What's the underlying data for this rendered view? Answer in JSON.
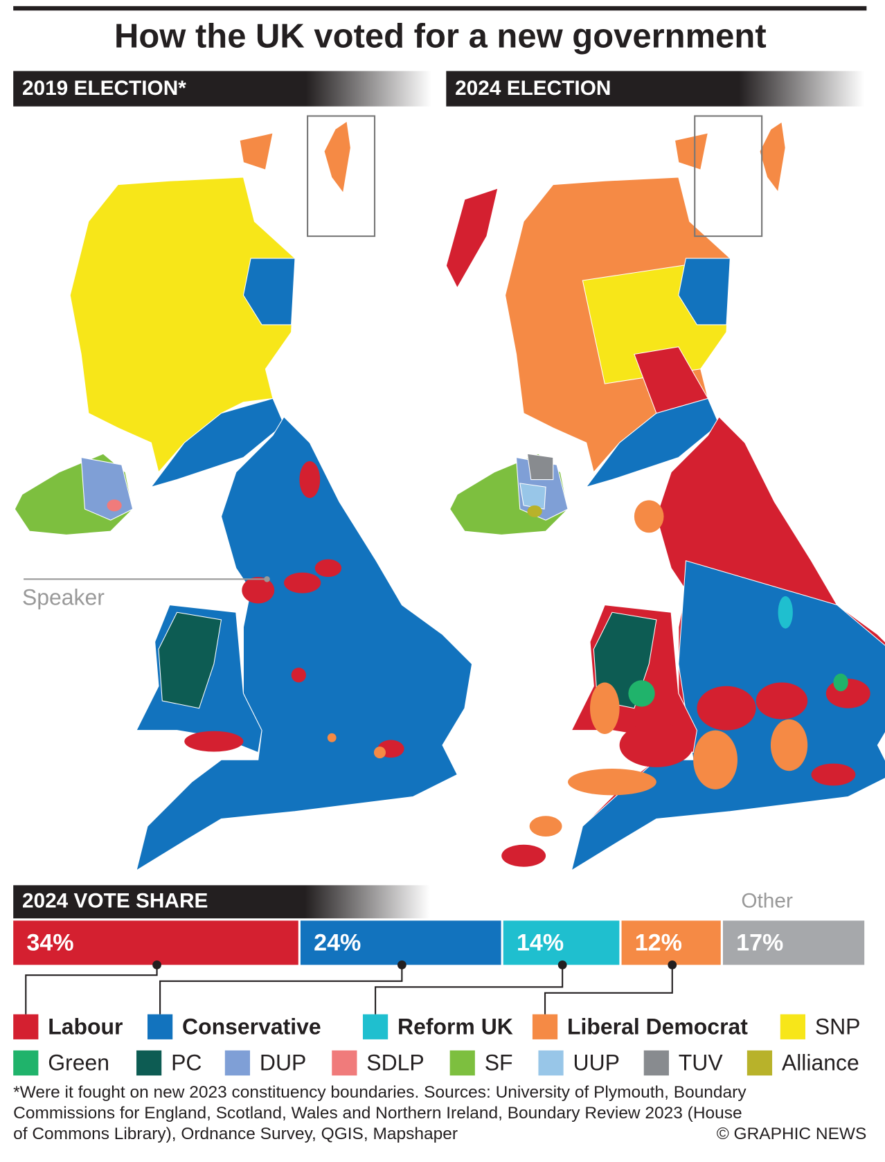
{
  "title": "How the UK voted for a new government",
  "panels": [
    {
      "label": "2019 ELECTION*"
    },
    {
      "label": "2024 ELECTION"
    }
  ],
  "annotation": "Speaker",
  "vote_share": {
    "title": "2024 VOTE SHARE",
    "other_label": "Other",
    "segments": [
      {
        "value": 34,
        "label": "34%",
        "color": "#d42030"
      },
      {
        "value": 24,
        "label": "24%",
        "color": "#1273be"
      },
      {
        "value": 14,
        "label": "14%",
        "color": "#1fbfcf"
      },
      {
        "value": 12,
        "label": "12%",
        "color": "#f58a45"
      },
      {
        "value": 17,
        "label": "17%",
        "color": "#a6a8ab"
      }
    ]
  },
  "legend": [
    {
      "name": "Labour",
      "color": "#d42030",
      "bold": true
    },
    {
      "name": "Conservative",
      "color": "#1273be",
      "bold": true
    },
    {
      "name": "Reform UK",
      "color": "#1fbfcf",
      "bold": true
    },
    {
      "name": "Liberal Democrat",
      "color": "#f58a45",
      "bold": true
    },
    {
      "name": "SNP",
      "color": "#f7e619",
      "bold": false
    },
    {
      "name": "Green",
      "color": "#20b36b",
      "bold": false
    },
    {
      "name": "PC",
      "color": "#0d5c53",
      "bold": false
    },
    {
      "name": "DUP",
      "color": "#7f9fd6",
      "bold": false
    },
    {
      "name": "SDLP",
      "color": "#f07b7b",
      "bold": false
    },
    {
      "name": "SF",
      "color": "#7dbf3f",
      "bold": false
    },
    {
      "name": "UUP",
      "color": "#98c6e8",
      "bold": false
    },
    {
      "name": "TUV",
      "color": "#888b8f",
      "bold": false
    },
    {
      "name": "Alliance",
      "color": "#b8b22a",
      "bold": false
    }
  ],
  "footnote": [
    "*Were it fought on new 2023 constituency boundaries. Sources: University of Plymouth, Boundary",
    "Commissions for England, Scotland, Wales and Northern Ireland, Boundary Review 2023 (House",
    "of Commons Library), Ordnance Survey, QGIS, Mapshaper"
  ],
  "credit": "© GRAPHIC NEWS"
}
